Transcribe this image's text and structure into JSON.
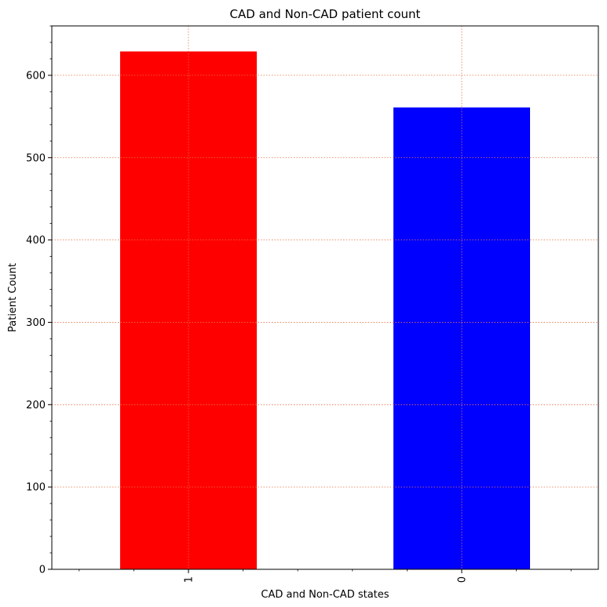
{
  "chart_data": {
    "type": "bar",
    "title": "CAD and Non-CAD patient count",
    "xlabel": "CAD and Non-CAD states",
    "ylabel": "Patient Count",
    "categories": [
      "1",
      "0"
    ],
    "values": [
      629,
      561
    ],
    "bar_colors": [
      "#ff0000",
      "#0000ff"
    ],
    "ylim": [
      0,
      660
    ],
    "yticks": [
      0,
      100,
      200,
      300,
      400,
      500,
      600
    ],
    "ytick_labels": [
      "0",
      "100",
      "200",
      "300",
      "400",
      "500",
      "600"
    ],
    "grid": true,
    "grid_color": "#e8734a",
    "x_tick_label_rotation": "vertical",
    "minor_ticks": true
  }
}
